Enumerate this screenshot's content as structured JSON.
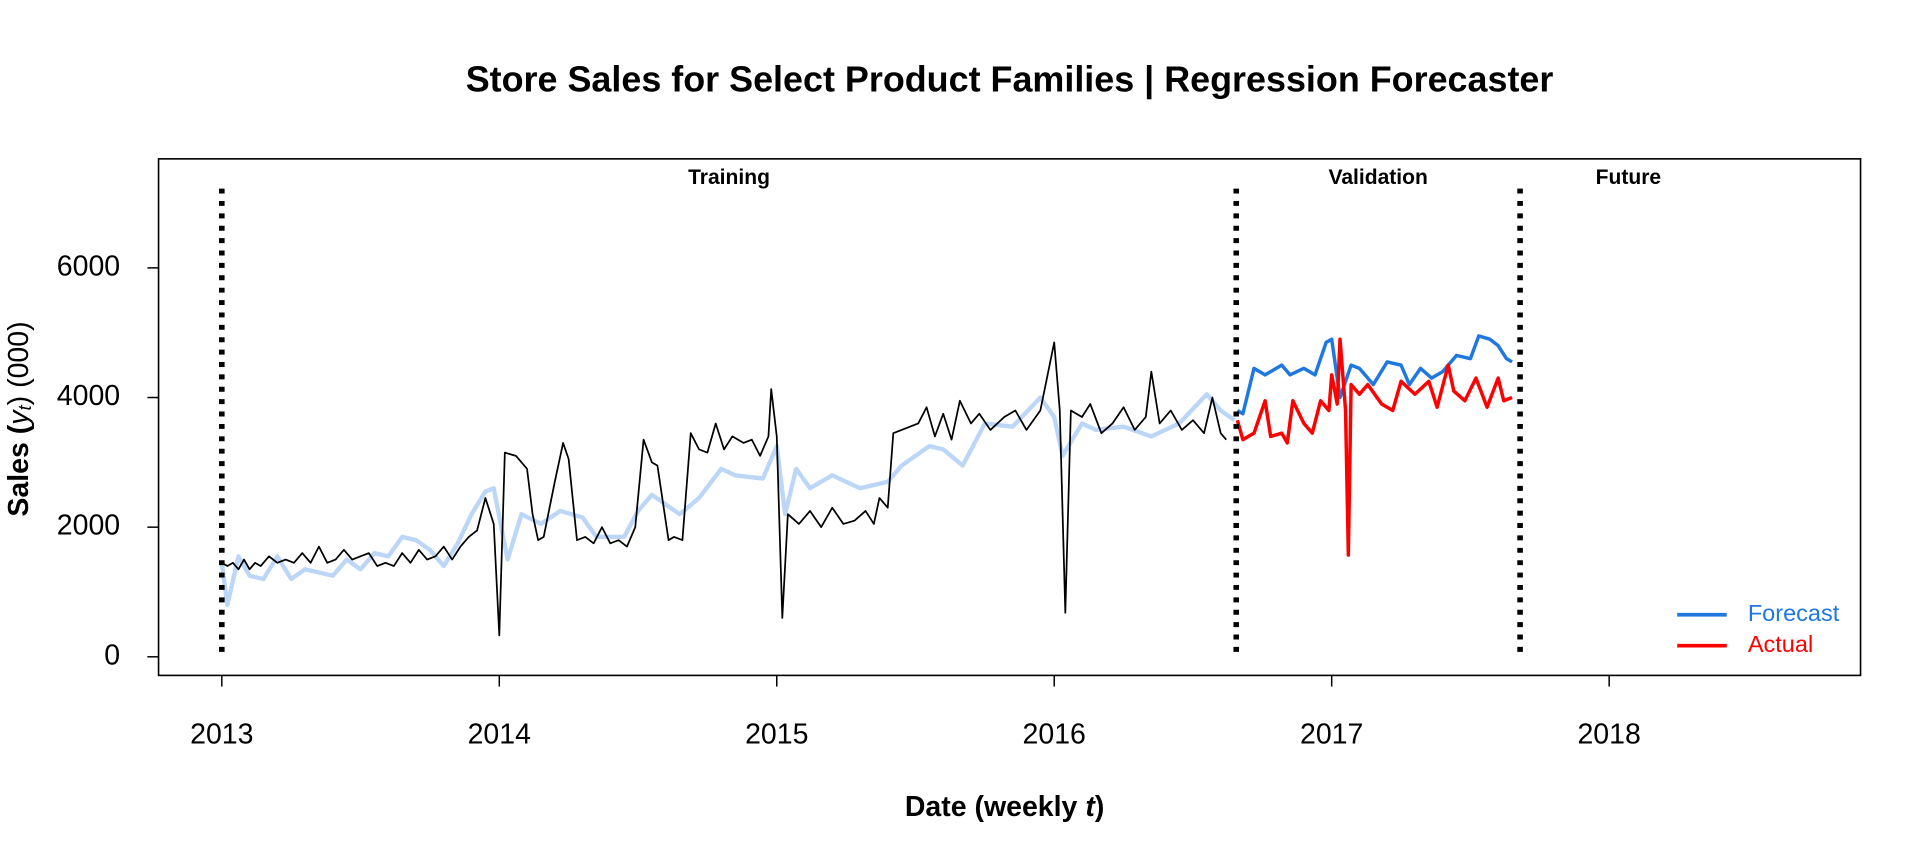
{
  "chart_data": {
    "type": "line",
    "title": "Store Sales for Select Product Families  |  Regression Forecaster",
    "xlabel": {
      "prefix": "Date (weekly ",
      "var": "t",
      "suffix": ")"
    },
    "ylabel": {
      "prefix": "Sales (",
      "var": "y",
      "sub": "t",
      "suffix": ") (000)"
    },
    "xlim": [
      2012.772,
      2018.906
    ],
    "ylim": [
      -287,
      7682
    ],
    "xticks": [
      2013,
      2014,
      2015,
      2016,
      2017,
      2018
    ],
    "yticks": [
      0,
      2000,
      4000,
      6000
    ],
    "boundaries": [
      2013,
      2016.656,
      2017.679
    ],
    "regions": [
      "Training",
      "Validation",
      "Future"
    ],
    "legend": "bottom-right",
    "series": [
      {
        "color": "#bcd6f7",
        "width": 3.5,
        "x": [
          2013.0,
          2013.02,
          2013.06,
          2013.1,
          2013.15,
          2013.2,
          2013.25,
          2013.3,
          2013.35,
          2013.4,
          2013.45,
          2013.5,
          2013.55,
          2013.6,
          2013.65,
          2013.7,
          2013.75,
          2013.8,
          2013.85,
          2013.9,
          2013.95,
          2013.98,
          2014.03,
          2014.08,
          2014.15,
          2014.22,
          2014.3,
          2014.35,
          2014.45,
          2014.5,
          2014.55,
          2014.65,
          2014.72,
          2014.8,
          2014.85,
          2014.95,
          2015.0,
          2015.03,
          2015.07,
          2015.12,
          2015.2,
          2015.3,
          2015.4,
          2015.45,
          2015.55,
          2015.6,
          2015.67,
          2015.75,
          2015.85,
          2015.95,
          2016.0,
          2016.03,
          2016.1,
          2016.15,
          2016.25,
          2016.35,
          2016.45,
          2016.55,
          2016.6,
          2016.65
        ],
        "values": [
          1450,
          800,
          1550,
          1250,
          1200,
          1550,
          1200,
          1350,
          1300,
          1250,
          1500,
          1350,
          1600,
          1550,
          1850,
          1800,
          1650,
          1400,
          1750,
          2200,
          2550,
          2600,
          1500,
          2200,
          2050,
          2250,
          2150,
          1850,
          1850,
          2250,
          2500,
          2200,
          2450,
          2900,
          2800,
          2750,
          3250,
          2200,
          2900,
          2600,
          2800,
          2600,
          2700,
          2950,
          3250,
          3200,
          2950,
          3600,
          3550,
          4000,
          3700,
          3100,
          3600,
          3500,
          3550,
          3400,
          3600,
          4050,
          3800,
          3650
        ]
      },
      {
        "color": "#000000",
        "width": 1.4,
        "x": [
          2013.0,
          2013.02,
          2013.04,
          2013.06,
          2013.08,
          2013.1,
          2013.12,
          2013.14,
          2013.17,
          2013.2,
          2013.23,
          2013.26,
          2013.29,
          2013.32,
          2013.35,
          2013.38,
          2013.41,
          2013.44,
          2013.47,
          2013.5,
          2013.53,
          2013.56,
          2013.59,
          2013.62,
          2013.65,
          2013.68,
          2013.71,
          2013.74,
          2013.77,
          2013.8,
          2013.83,
          2013.86,
          2013.89,
          2013.92,
          2013.95,
          2013.98,
          2014.0,
          2014.02,
          2014.06,
          2014.1,
          2014.12,
          2014.14,
          2014.16,
          2014.2,
          2014.23,
          2014.25,
          2014.28,
          2014.31,
          2014.34,
          2014.37,
          2014.4,
          2014.43,
          2014.46,
          2014.49,
          2014.52,
          2014.55,
          2014.57,
          2014.61,
          2014.63,
          2014.66,
          2014.69,
          2014.72,
          2014.75,
          2014.78,
          2014.81,
          2014.84,
          2014.88,
          2014.91,
          2014.94,
          2014.97,
          2014.98,
          2015.0,
          2015.02,
          2015.04,
          2015.08,
          2015.12,
          2015.16,
          2015.2,
          2015.24,
          2015.28,
          2015.32,
          2015.35,
          2015.37,
          2015.4,
          2015.42,
          2015.48,
          2015.51,
          2015.54,
          2015.57,
          2015.6,
          2015.63,
          2015.66,
          2015.7,
          2015.73,
          2015.77,
          2015.82,
          2015.86,
          2015.9,
          2015.95,
          2016.0,
          2016.02,
          2016.04,
          2016.06,
          2016.1,
          2016.13,
          2016.17,
          2016.21,
          2016.25,
          2016.29,
          2016.33,
          2016.35,
          2016.38,
          2016.42,
          2016.46,
          2016.5,
          2016.54,
          2016.57,
          2016.6,
          2016.62
        ],
        "values": [
          1450,
          1400,
          1450,
          1350,
          1500,
          1350,
          1450,
          1400,
          1550,
          1450,
          1500,
          1450,
          1600,
          1450,
          1700,
          1450,
          1500,
          1650,
          1500,
          1550,
          1600,
          1400,
          1450,
          1400,
          1600,
          1450,
          1650,
          1500,
          1550,
          1700,
          1500,
          1700,
          1850,
          1950,
          2450,
          2050,
          330,
          3150,
          3100,
          2900,
          2200,
          1800,
          1850,
          2700,
          3300,
          3050,
          1800,
          1850,
          1750,
          2000,
          1750,
          1800,
          1700,
          2000,
          3350,
          3000,
          2950,
          1800,
          1850,
          1800,
          3450,
          3200,
          3150,
          3600,
          3200,
          3400,
          3300,
          3350,
          3100,
          3400,
          4130,
          3400,
          600,
          2200,
          2050,
          2250,
          2000,
          2300,
          2050,
          2100,
          2250,
          2050,
          2450,
          2300,
          3450,
          3550,
          3600,
          3850,
          3400,
          3750,
          3350,
          3950,
          3600,
          3750,
          3500,
          3700,
          3800,
          3500,
          3800,
          4850,
          3800,
          680,
          3800,
          3700,
          3900,
          3450,
          3600,
          3850,
          3500,
          3700,
          4400,
          3600,
          3800,
          3500,
          3650,
          3450,
          4000,
          3450,
          3350
        ]
      },
      {
        "name": "Forecast",
        "color": "#1f78e0",
        "width": 2.8,
        "x": [
          2016.66,
          2016.68,
          2016.72,
          2016.76,
          2016.82,
          2016.85,
          2016.9,
          2016.94,
          2016.98,
          2017.0,
          2017.03,
          2017.07,
          2017.1,
          2017.15,
          2017.2,
          2017.25,
          2017.28,
          2017.32,
          2017.36,
          2017.4,
          2017.45,
          2017.5,
          2017.53,
          2017.57,
          2017.6,
          2017.63,
          2017.65
        ],
        "values": [
          3800,
          3750,
          4450,
          4350,
          4500,
          4350,
          4450,
          4350,
          4850,
          4900,
          4000,
          4500,
          4450,
          4200,
          4550,
          4500,
          4200,
          4450,
          4300,
          4400,
          4650,
          4600,
          4950,
          4900,
          4800,
          4600,
          4550
        ]
      },
      {
        "name": "Actual",
        "color": "#ff0000",
        "width": 2.8,
        "x": [
          2016.66,
          2016.68,
          2016.72,
          2016.76,
          2016.78,
          2016.82,
          2016.84,
          2016.86,
          2016.9,
          2016.93,
          2016.96,
          2016.99,
          2017.0,
          2017.02,
          2017.03,
          2017.05,
          2017.06,
          2017.07,
          2017.1,
          2017.13,
          2017.18,
          2017.22,
          2017.25,
          2017.3,
          2017.35,
          2017.38,
          2017.42,
          2017.44,
          2017.48,
          2017.52,
          2017.56,
          2017.6,
          2017.62,
          2017.65
        ],
        "values": [
          3650,
          3350,
          3450,
          3950,
          3400,
          3450,
          3300,
          3950,
          3600,
          3450,
          3950,
          3800,
          4350,
          3900,
          4900,
          3800,
          1570,
          4200,
          4050,
          4200,
          3900,
          3800,
          4250,
          4050,
          4250,
          3850,
          4500,
          4100,
          3950,
          4300,
          3850,
          4300,
          3950,
          4000
        ]
      }
    ]
  }
}
